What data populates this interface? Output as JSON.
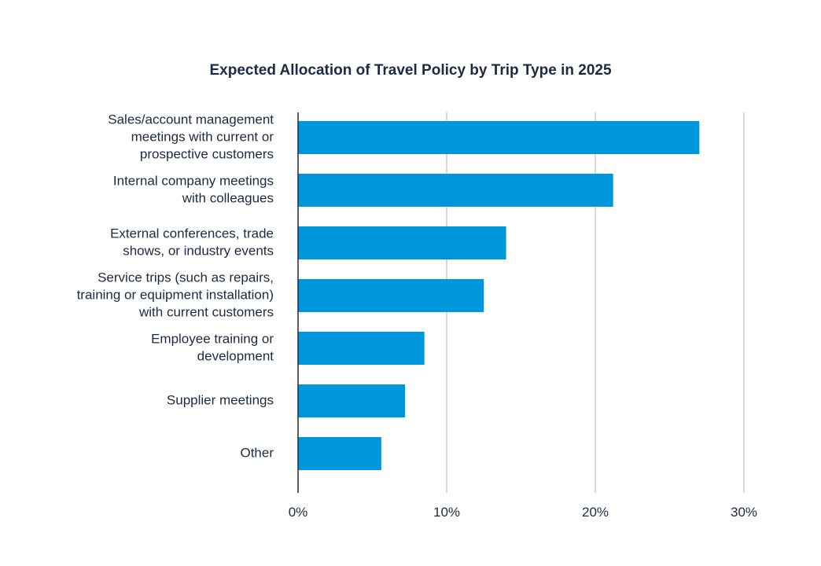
{
  "chart_data": {
    "type": "bar",
    "orientation": "horizontal",
    "title": "Expected Allocation of Travel Policy by Trip Type in 2025",
    "categories": [
      [
        "Sales/account management",
        "meetings with current or",
        "prospective customers"
      ],
      [
        "Internal company meetings",
        "with colleagues"
      ],
      [
        "External conferences, trade",
        "shows, or industry events"
      ],
      [
        "Service trips (such as repairs,",
        "training or equipment installation)",
        "with current customers"
      ],
      [
        "Employee training or",
        "development"
      ],
      [
        "Supplier meetings"
      ],
      [
        "Other"
      ]
    ],
    "values": [
      27,
      21.2,
      14,
      12.5,
      8.5,
      7.2,
      5.6
    ],
    "xlim": [
      0,
      30
    ],
    "xticks": [
      0,
      10,
      20,
      30
    ],
    "xtick_labels": [
      "0%",
      "10%",
      "20%",
      "30%"
    ],
    "xlabel": "",
    "ylabel": "",
    "grid": "vertical",
    "bar_color": "#0096db",
    "axis_color": "#1c2a44",
    "grid_color": "#cccccc",
    "text_color": "#1c2a44"
  }
}
